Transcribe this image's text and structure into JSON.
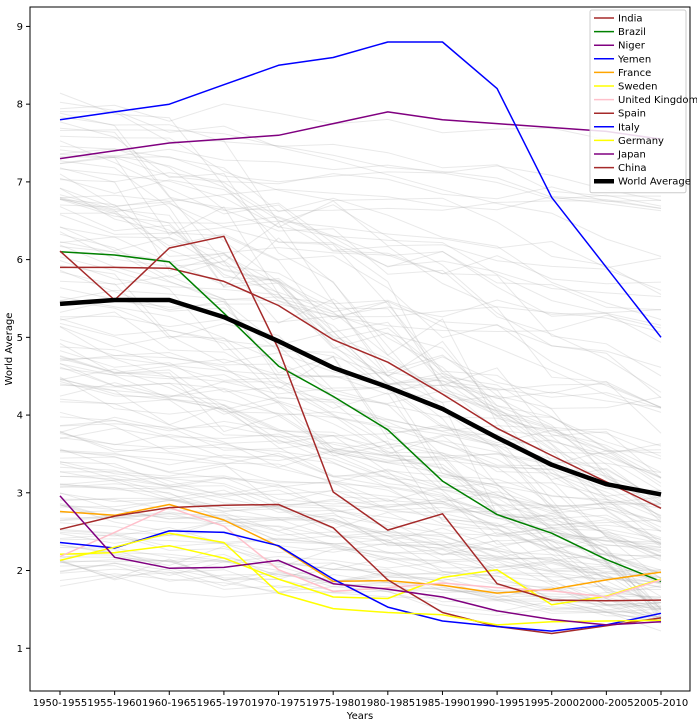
{
  "chart_data": {
    "type": "line",
    "xlabel": "Years",
    "ylabel": "World Average",
    "ylim": [
      0.45,
      9.25
    ],
    "yticks": [
      1,
      2,
      3,
      4,
      5,
      6,
      7,
      8,
      9
    ],
    "grid": false,
    "legend_position": "top-right",
    "categories": [
      "1950-1955",
      "1955-1960",
      "1960-1965",
      "1965-1970",
      "1970-1975",
      "1975-1980",
      "1980-1985",
      "1985-1990",
      "1990-1995",
      "1995-2000",
      "2000-2005",
      "2005-2010"
    ],
    "background_series_note": "",
    "series": [
      {
        "name": "India",
        "color": "#a52a2a",
        "width": 1.5,
        "values": [
          5.9,
          5.9,
          5.89,
          5.72,
          5.41,
          4.97,
          4.68,
          4.27,
          3.83,
          3.48,
          3.14,
          2.8
        ]
      },
      {
        "name": "Brazil",
        "color": "#008000",
        "width": 1.5,
        "values": [
          6.1,
          6.06,
          5.97,
          5.31,
          4.63,
          4.24,
          3.81,
          3.15,
          2.72,
          2.48,
          2.14,
          1.86
        ]
      },
      {
        "name": "Niger",
        "color": "#800080",
        "width": 1.5,
        "values": [
          7.3,
          7.4,
          7.5,
          7.55,
          7.6,
          7.75,
          7.9,
          7.8,
          7.75,
          7.7,
          7.65,
          7.55
        ]
      },
      {
        "name": "Yemen",
        "color": "#0000ff",
        "width": 1.5,
        "values": [
          7.8,
          7.9,
          8.0,
          8.25,
          8.5,
          8.6,
          8.8,
          8.8,
          8.2,
          6.8,
          5.9,
          5.0
        ]
      },
      {
        "name": "France",
        "color": "#ffa500",
        "width": 1.5,
        "values": [
          2.76,
          2.71,
          2.85,
          2.65,
          2.31,
          1.86,
          1.87,
          1.81,
          1.71,
          1.76,
          1.88,
          1.98
        ]
      },
      {
        "name": "Sweden",
        "color": "#ffff00",
        "width": 1.5,
        "values": [
          2.21,
          2.23,
          2.32,
          2.16,
          1.89,
          1.66,
          1.64,
          1.91,
          2.01,
          1.56,
          1.67,
          1.89
        ]
      },
      {
        "name": "United Kingdom",
        "color": "#ffc0cb",
        "width": 1.5,
        "values": [
          2.18,
          2.49,
          2.81,
          2.57,
          2.01,
          1.73,
          1.78,
          1.84,
          1.78,
          1.74,
          1.66,
          1.88
        ]
      },
      {
        "name": "Spain",
        "color": "#a52a2a",
        "width": 1.5,
        "values": [
          2.53,
          2.7,
          2.81,
          2.84,
          2.85,
          2.55,
          1.88,
          1.46,
          1.28,
          1.19,
          1.29,
          1.39
        ]
      },
      {
        "name": "Italy",
        "color": "#0000ff",
        "width": 1.5,
        "values": [
          2.36,
          2.29,
          2.51,
          2.49,
          2.32,
          1.89,
          1.53,
          1.35,
          1.28,
          1.22,
          1.3,
          1.45
        ]
      },
      {
        "name": "Germany",
        "color": "#ffff00",
        "width": 1.5,
        "values": [
          2.13,
          2.3,
          2.48,
          2.36,
          1.71,
          1.51,
          1.46,
          1.43,
          1.3,
          1.34,
          1.35,
          1.36
        ]
      },
      {
        "name": "Japan",
        "color": "#800080",
        "width": 1.5,
        "values": [
          2.96,
          2.17,
          2.03,
          2.04,
          2.13,
          1.83,
          1.76,
          1.66,
          1.48,
          1.37,
          1.3,
          1.34
        ]
      },
      {
        "name": "China",
        "color": "#a52a2a",
        "width": 1.5,
        "values": [
          6.11,
          5.48,
          6.15,
          6.3,
          4.85,
          3.01,
          2.52,
          2.73,
          1.83,
          1.62,
          1.61,
          1.62
        ]
      },
      {
        "name": "World Average",
        "color": "#000000",
        "width": 4.5,
        "values": [
          5.43,
          5.48,
          5.48,
          5.26,
          4.95,
          4.61,
          4.36,
          4.08,
          3.71,
          3.36,
          3.11,
          2.98
        ]
      }
    ]
  }
}
